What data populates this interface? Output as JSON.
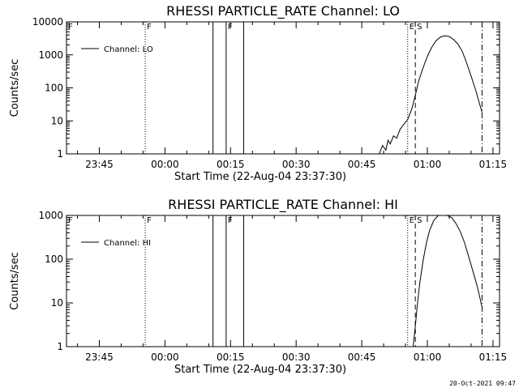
{
  "colors": {
    "background": "#ffffff",
    "foreground": "#000000"
  },
  "timestamp": "20-Oct-2021 09:47",
  "chart_data": [
    {
      "type": "line",
      "title": "RHESSI PARTICLE_RATE Channel: LO",
      "xlabel": "Start Time (22-Aug-04 23:37:30)",
      "ylabel": "Counts/sec",
      "y_scale": "log",
      "ylim": [
        1,
        10000
      ],
      "xlim": [
        "23:37:30",
        "01:16:30"
      ],
      "x_ticks": [
        "23:45",
        "00:00",
        "00:15",
        "00:30",
        "00:45",
        "01:00",
        "01:15"
      ],
      "y_ticks": [
        "1",
        "10",
        "100",
        "1000",
        "10000"
      ],
      "legend": {
        "entries": [
          "Channel: LO"
        ],
        "position": "top-left"
      },
      "markers": [
        {
          "time": "23:37:30",
          "style": "dotted",
          "label": "F"
        },
        {
          "time": "23:55:30",
          "style": "dotted",
          "label": "F"
        },
        {
          "time": "00:11:00",
          "style": "solid",
          "label": ""
        },
        {
          "time": "00:14:00",
          "style": "solid",
          "label": "F"
        },
        {
          "time": "00:18:00",
          "style": "solid",
          "label": ""
        },
        {
          "time": "00:55:30",
          "style": "dotted",
          "label": "E"
        },
        {
          "time": "00:57:15",
          "style": "dashed",
          "label": "S"
        },
        {
          "time": "01:12:30",
          "style": "dashdot",
          "label": ""
        }
      ],
      "series": [
        {
          "name": "Channel: LO",
          "x": [
            "00:49:00",
            "00:49:45",
            "00:50:30",
            "00:51:00",
            "00:51:30",
            "00:52:15",
            "00:53:00",
            "00:53:45",
            "00:54:30",
            "00:55:30",
            "00:56:30",
            "00:57:15",
            "00:58:00",
            "00:59:00",
            "01:00:00",
            "01:01:00",
            "01:02:00",
            "01:03:00",
            "01:04:00",
            "01:05:00",
            "01:06:00",
            "01:07:00",
            "01:08:00",
            "01:09:00",
            "01:10:00",
            "01:11:00",
            "01:12:30"
          ],
          "values": [
            1,
            1.8,
            1.3,
            2.6,
            2.0,
            3.5,
            3.0,
            5.5,
            7.5,
            11,
            24,
            60,
            160,
            400,
            900,
            1700,
            2700,
            3500,
            3800,
            3600,
            2900,
            2100,
            1250,
            560,
            230,
            90,
            18
          ]
        }
      ]
    },
    {
      "type": "line",
      "title": "RHESSI PARTICLE_RATE Channel: HI",
      "xlabel": "Start Time (22-Aug-04 23:37:30)",
      "ylabel": "Counts/sec",
      "y_scale": "log",
      "ylim": [
        1,
        1000
      ],
      "xlim": [
        "23:37:30",
        "01:16:30"
      ],
      "x_ticks": [
        "23:45",
        "00:00",
        "00:15",
        "00:30",
        "00:45",
        "01:00",
        "01:15"
      ],
      "y_ticks": [
        "1",
        "10",
        "100",
        "1000"
      ],
      "legend": {
        "entries": [
          "Channel: HI"
        ],
        "position": "top-left"
      },
      "markers": [
        {
          "time": "23:37:30",
          "style": "dotted",
          "label": "F"
        },
        {
          "time": "23:55:30",
          "style": "dotted",
          "label": "F"
        },
        {
          "time": "00:11:00",
          "style": "solid",
          "label": ""
        },
        {
          "time": "00:14:00",
          "style": "solid",
          "label": "F"
        },
        {
          "time": "00:18:00",
          "style": "solid",
          "label": ""
        },
        {
          "time": "00:55:30",
          "style": "dotted",
          "label": "E"
        },
        {
          "time": "00:57:15",
          "style": "dashed",
          "label": "S"
        },
        {
          "time": "01:12:30",
          "style": "dashdot",
          "label": ""
        }
      ],
      "series": [
        {
          "name": "Channel: HI",
          "x": [
            "00:56:45",
            "00:57:15",
            "00:57:45",
            "00:58:15",
            "00:59:00",
            "00:59:45",
            "01:00:30",
            "01:01:30",
            "01:02:30",
            "01:03:30",
            "01:04:30",
            "01:05:30",
            "01:06:30",
            "01:07:30",
            "01:08:30",
            "01:09:30",
            "01:10:30",
            "01:11:30",
            "01:12:30"
          ],
          "values": [
            1,
            3,
            10,
            28,
            90,
            230,
            450,
            780,
            1000,
            1100,
            1050,
            900,
            660,
            430,
            240,
            110,
            50,
            22,
            8
          ]
        }
      ]
    }
  ]
}
